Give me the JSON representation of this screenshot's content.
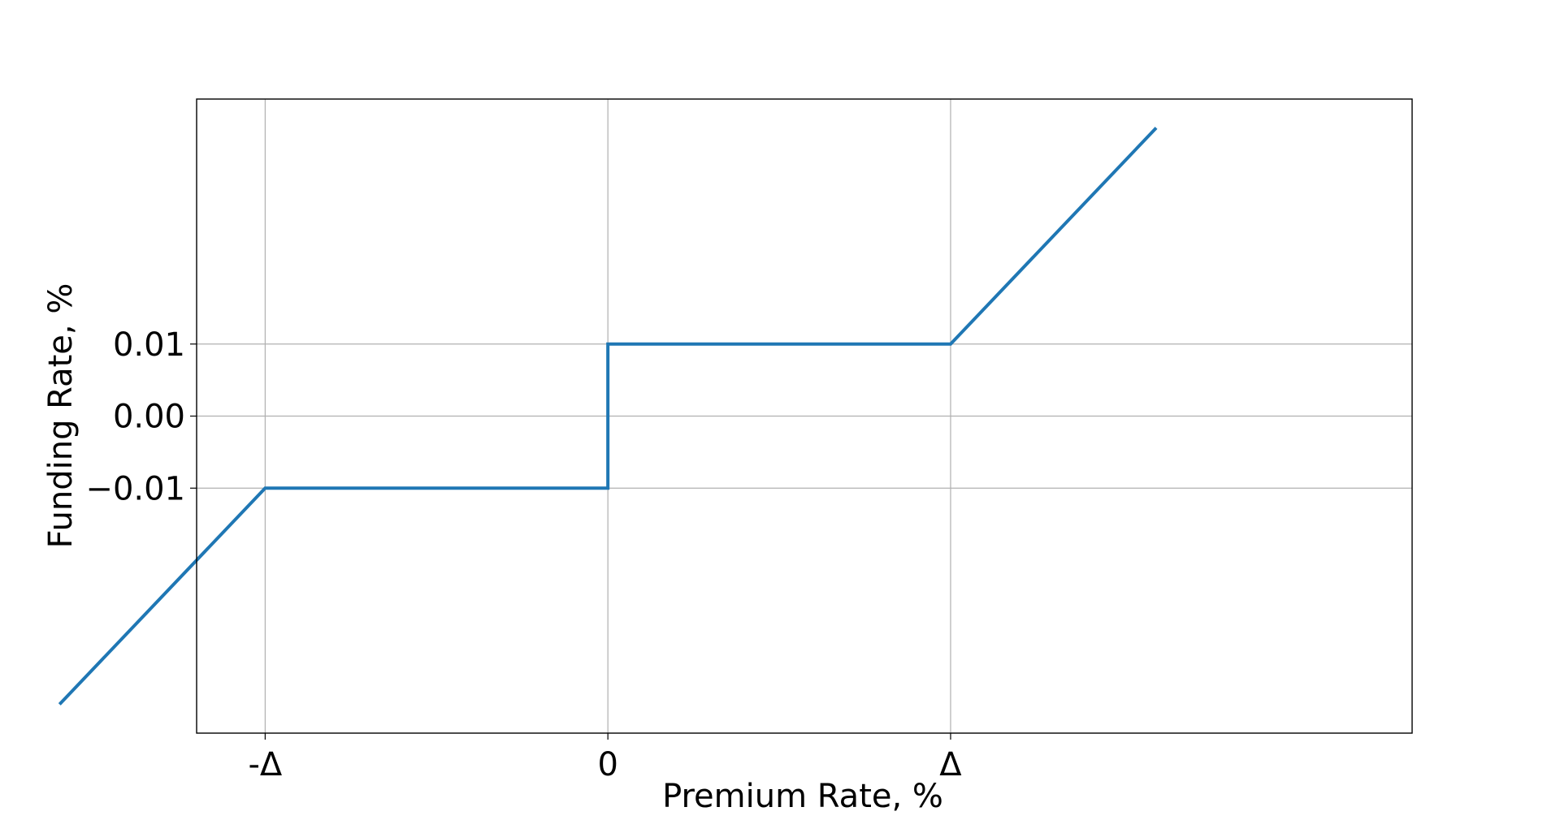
{
  "chart_data": {
    "type": "line",
    "xlabel": "Premium Rate, %",
    "ylabel": "Funding Rate, %",
    "xlim": [
      -0.9,
      1.76
    ],
    "ylim": [
      -0.044,
      0.044
    ],
    "x_ticks": [
      {
        "value": -0.75,
        "label": "-Δ"
      },
      {
        "value": 0,
        "label": "0"
      },
      {
        "value": 0.75,
        "label": "Δ"
      }
    ],
    "y_ticks": [
      {
        "value": -0.01,
        "label": "−0.01"
      },
      {
        "value": 0,
        "label": "0.00"
      },
      {
        "value": 0.01,
        "label": "0.01"
      }
    ],
    "grid": true,
    "legend": false,
    "series": [
      {
        "color": "#1f77b4",
        "points": [
          {
            "x": -1.2,
            "y": -0.04
          },
          {
            "x": -0.75,
            "y": -0.01
          },
          {
            "x": 0,
            "y": -0.01
          },
          {
            "x": 0,
            "y": 0.01
          },
          {
            "x": 0.75,
            "y": 0.01
          },
          {
            "x": 1.2,
            "y": 0.04
          }
        ]
      }
    ]
  }
}
